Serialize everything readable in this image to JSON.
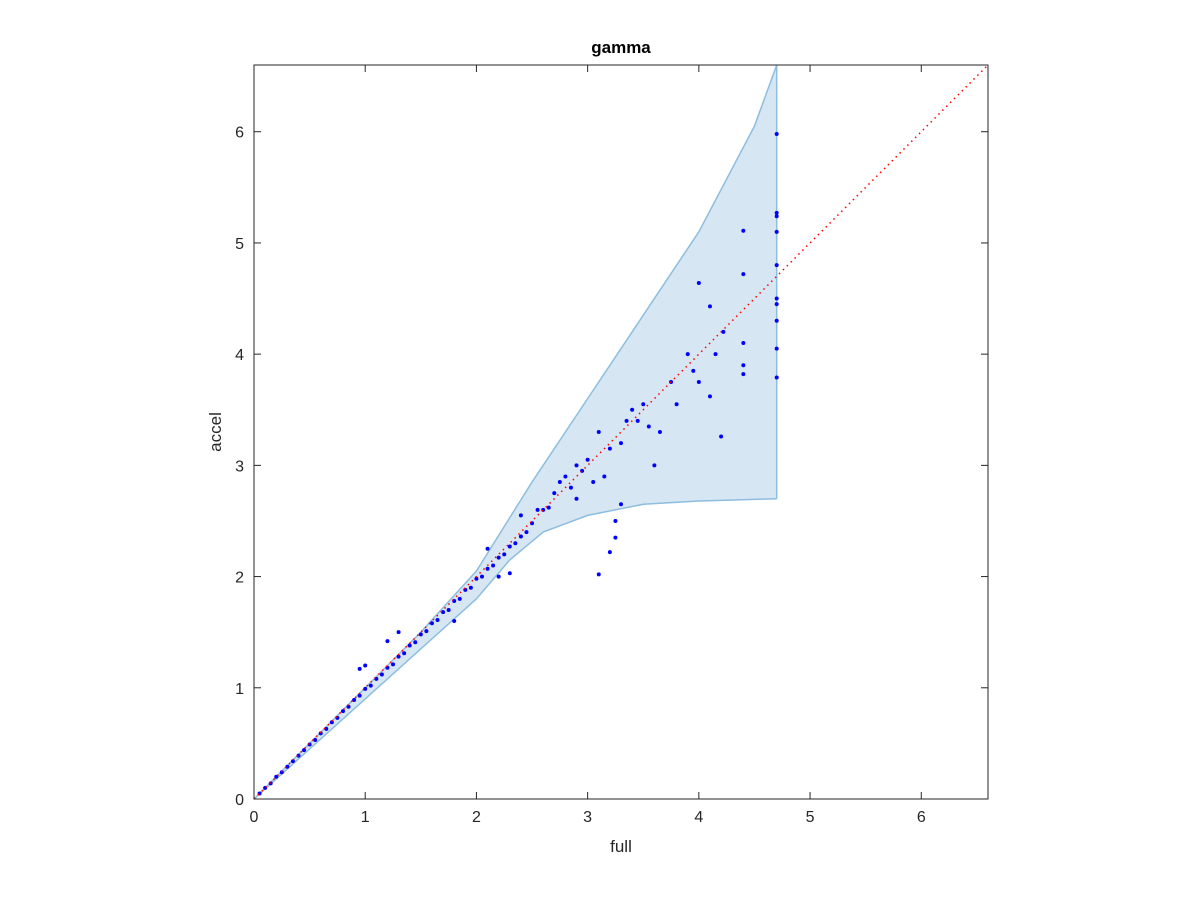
{
  "chart_data": {
    "type": "scatter",
    "title": "gamma",
    "x_label": "full",
    "y_label": "accel",
    "xlim": [
      0,
      6.6
    ],
    "ylim": [
      0,
      6.6
    ],
    "xticks": [
      0,
      1,
      2,
      3,
      4,
      5,
      6
    ],
    "yticks": [
      0,
      1,
      2,
      3,
      4,
      5,
      6
    ],
    "points": {
      "color": "#0000ff",
      "x": [
        0.05,
        0.1,
        0.15,
        0.2,
        0.25,
        0.3,
        0.35,
        0.4,
        0.45,
        0.5,
        0.55,
        0.6,
        0.65,
        0.7,
        0.75,
        0.8,
        0.85,
        0.9,
        0.95,
        1.0,
        1.05,
        1.1,
        1.15,
        1.2,
        1.25,
        1.3,
        1.35,
        1.4,
        1.45,
        1.5,
        1.55,
        1.6,
        1.65,
        1.7,
        1.75,
        1.8,
        1.85,
        1.9,
        1.95,
        2.0,
        2.05,
        2.1,
        2.15,
        2.2,
        2.25,
        2.3,
        2.35,
        2.4,
        2.45,
        2.5,
        0.95,
        1.0,
        1.3,
        1.2,
        1.8,
        2.2,
        2.3,
        2.1,
        2.4,
        2.6,
        2.7,
        2.8,
        2.85,
        2.9,
        3.0,
        3.05,
        3.1,
        3.2,
        3.25,
        3.25,
        3.3,
        3.1,
        3.2,
        3.35,
        3.4,
        3.5,
        3.55,
        3.6,
        3.65,
        3.75,
        3.8,
        3.9,
        3.95,
        4.0,
        4.0,
        4.1,
        4.15,
        4.1,
        4.2,
        4.22,
        4.4,
        4.4,
        4.4,
        4.4,
        4.4,
        4.7,
        4.7,
        4.7,
        4.7,
        4.7,
        4.7,
        4.7,
        4.7,
        4.7,
        4.7,
        2.55,
        2.65,
        2.75,
        2.95,
        3.3,
        3.45,
        3.15,
        2.9
      ],
      "y": [
        0.05,
        0.1,
        0.14,
        0.2,
        0.24,
        0.29,
        0.34,
        0.39,
        0.44,
        0.49,
        0.53,
        0.59,
        0.63,
        0.69,
        0.73,
        0.79,
        0.83,
        0.89,
        0.93,
        0.99,
        1.02,
        1.08,
        1.12,
        1.18,
        1.21,
        1.28,
        1.31,
        1.38,
        1.41,
        1.48,
        1.51,
        1.58,
        1.61,
        1.68,
        1.7,
        1.78,
        1.8,
        1.88,
        1.9,
        1.98,
        2.0,
        2.07,
        2.1,
        2.17,
        2.2,
        2.27,
        2.3,
        2.36,
        2.4,
        2.48,
        1.17,
        1.2,
        1.5,
        1.42,
        1.6,
        2.0,
        2.03,
        2.25,
        2.55,
        2.6,
        2.75,
        2.9,
        2.8,
        3.0,
        3.05,
        2.85,
        3.3,
        3.15,
        2.5,
        2.35,
        2.65,
        2.02,
        2.22,
        3.4,
        3.5,
        3.55,
        3.35,
        3.0,
        3.3,
        3.75,
        3.55,
        4.0,
        3.85,
        4.64,
        3.75,
        4.43,
        4.0,
        3.62,
        3.26,
        4.2,
        5.11,
        4.72,
        4.1,
        3.9,
        3.82,
        5.98,
        5.27,
        5.24,
        5.1,
        4.8,
        4.5,
        4.45,
        4.3,
        4.05,
        3.79,
        2.6,
        2.62,
        2.85,
        2.95,
        3.2,
        3.4,
        2.9,
        2.7
      ]
    },
    "band": {
      "color": "#d6e7f3",
      "edge_color": "#8dbde0",
      "x_upper": [
        0,
        1,
        1.5,
        2,
        2.5,
        3,
        3.5,
        4,
        4.5,
        4.7
      ],
      "upper": [
        0,
        1.0,
        1.5,
        2.05,
        2.85,
        3.6,
        4.35,
        5.1,
        6.05,
        6.6
      ],
      "x_lower": [
        0,
        1,
        1.5,
        2,
        2.3,
        2.6,
        3,
        3.5,
        4,
        4.7
      ],
      "lower": [
        0,
        0.9,
        1.35,
        1.8,
        2.15,
        2.4,
        2.55,
        2.65,
        2.68,
        2.7
      ]
    },
    "reference_line": {
      "color": "#ff0000",
      "x": [
        0,
        6.6
      ],
      "y": [
        0,
        6.6
      ]
    }
  }
}
